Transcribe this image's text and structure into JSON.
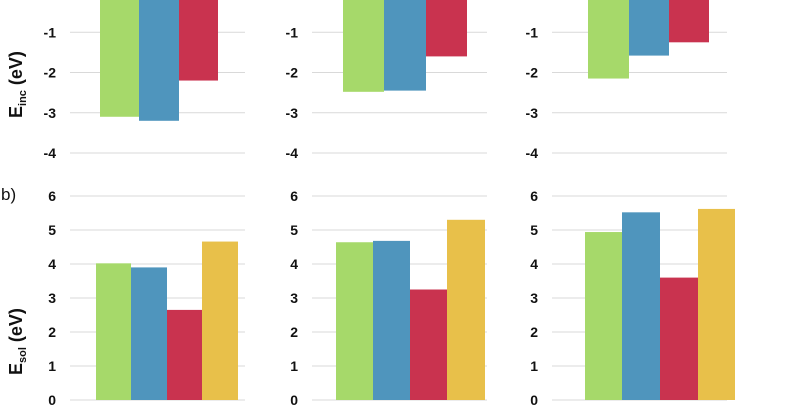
{
  "panel_label_b": "b)",
  "row_a": {
    "ylabel_main": "E",
    "ylabel_sub": "inc",
    "ylabel_unit": " (eV)"
  },
  "row_b": {
    "ylabel_main": "E",
    "ylabel_sub": "sol",
    "ylabel_unit": " (eV)"
  },
  "series_colors": [
    "#a6d96a",
    "#4f95bd",
    "#c9334f",
    "#e8c04a"
  ],
  "chart_data": [
    {
      "type": "bar",
      "row": "a",
      "ylim": [
        -4,
        0
      ],
      "yticks": [
        -1,
        -2,
        -3,
        -4
      ],
      "grid": true,
      "series": [
        {
          "values": [
            -3.1
          ]
        },
        {
          "values": [
            -3.2
          ]
        },
        {
          "values": [
            -2.2
          ]
        }
      ]
    },
    {
      "type": "bar",
      "row": "a",
      "ylim": [
        -4,
        0
      ],
      "yticks": [
        -1,
        -2,
        -3,
        -4
      ],
      "grid": true,
      "series": [
        {
          "values": [
            -2.48
          ]
        },
        {
          "values": [
            -2.45
          ]
        },
        {
          "values": [
            -1.6
          ]
        }
      ]
    },
    {
      "type": "bar",
      "row": "a",
      "ylim": [
        -4,
        0
      ],
      "yticks": [
        -1,
        -2,
        -3,
        -4
      ],
      "grid": true,
      "series": [
        {
          "values": [
            -2.15
          ]
        },
        {
          "values": [
            -1.58
          ]
        },
        {
          "values": [
            -1.25
          ]
        }
      ]
    },
    {
      "type": "bar",
      "row": "b",
      "ylim": [
        0,
        6
      ],
      "yticks": [
        0,
        1,
        2,
        3,
        4,
        5,
        6
      ],
      "grid": true,
      "series": [
        {
          "values": [
            4.02
          ]
        },
        {
          "values": [
            3.9
          ]
        },
        {
          "values": [
            2.65
          ]
        },
        {
          "values": [
            4.66
          ]
        }
      ]
    },
    {
      "type": "bar",
      "row": "b",
      "ylim": [
        0,
        6
      ],
      "yticks": [
        0,
        1,
        2,
        3,
        4,
        5,
        6
      ],
      "grid": true,
      "series": [
        {
          "values": [
            4.64
          ]
        },
        {
          "values": [
            4.68
          ]
        },
        {
          "values": [
            3.25
          ]
        },
        {
          "values": [
            5.3
          ]
        }
      ]
    },
    {
      "type": "bar",
      "row": "b",
      "ylim": [
        0,
        6
      ],
      "yticks": [
        0,
        1,
        2,
        3,
        4,
        5,
        6
      ],
      "grid": true,
      "series": [
        {
          "values": [
            4.94
          ]
        },
        {
          "values": [
            5.52
          ]
        },
        {
          "values": [
            3.6
          ]
        },
        {
          "values": [
            5.62
          ]
        }
      ]
    }
  ]
}
